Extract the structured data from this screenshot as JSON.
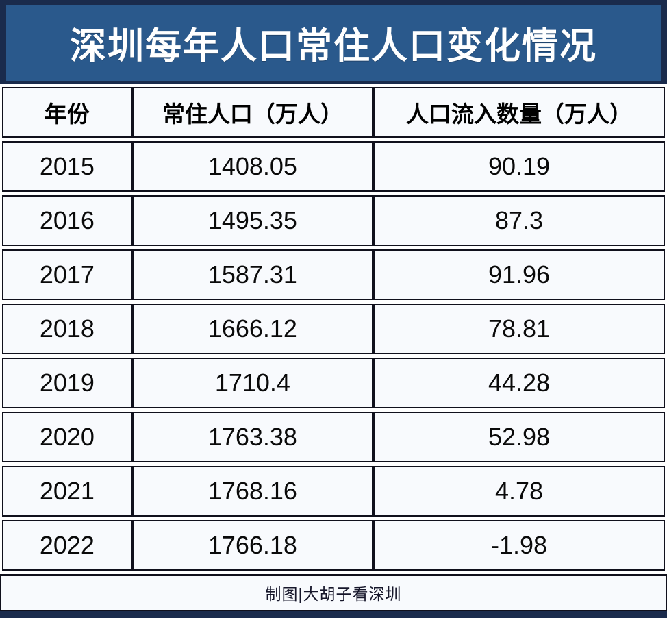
{
  "title": "深圳每年人口常住人口变化情况",
  "table": {
    "columns": [
      "年份",
      "常住人口（万人）",
      "人口流入数量（万人）"
    ],
    "rows": [
      {
        "year": "2015",
        "population": "1408.05",
        "inflow": "90.19"
      },
      {
        "year": "2016",
        "population": "1495.35",
        "inflow": "87.3"
      },
      {
        "year": "2017",
        "population": "1587.31",
        "inflow": "91.96"
      },
      {
        "year": "2018",
        "population": "1666.12",
        "inflow": "78.81"
      },
      {
        "year": "2019",
        "population": "1710.4",
        "inflow": "44.28"
      },
      {
        "year": "2020",
        "population": "1763.38",
        "inflow": "52.98"
      },
      {
        "year": "2021",
        "population": "1768.16",
        "inflow": "4.78"
      },
      {
        "year": "2022",
        "population": "1766.18",
        "inflow": "-1.98"
      }
    ]
  },
  "footer": {
    "credit": "制图|大胡子看深圳"
  },
  "colors": {
    "banner_bg": "#2a598c",
    "banner_frame": "#1a2b4c",
    "cell_bg": "#f8fafd",
    "table_border": "#10101c",
    "title_text": "#ffffff",
    "body_text": "#0a0a0a",
    "bottom_bar": "#1a2b4c"
  },
  "chart_data": {
    "type": "table",
    "title": "深圳每年人口常住人口变化情况",
    "columns": [
      "年份",
      "常住人口（万人）",
      "人口流入数量（万人）"
    ],
    "categories": [
      "2015",
      "2016",
      "2017",
      "2018",
      "2019",
      "2020",
      "2021",
      "2022"
    ],
    "series": [
      {
        "name": "常住人口（万人）",
        "values": [
          1408.05,
          1495.35,
          1587.31,
          1666.12,
          1710.4,
          1763.38,
          1768.16,
          1766.18
        ]
      },
      {
        "name": "人口流入数量（万人）",
        "values": [
          90.19,
          87.3,
          91.96,
          78.81,
          44.28,
          52.98,
          4.78,
          -1.98
        ]
      }
    ],
    "source_credit": "制图|大胡子看深圳"
  }
}
